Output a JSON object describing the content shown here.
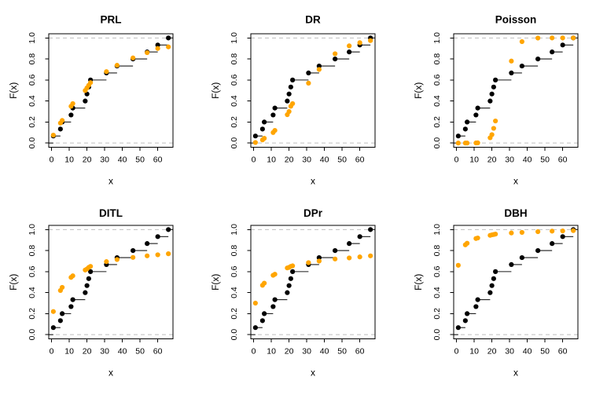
{
  "figure": {
    "background": "#FFFFFF",
    "description": "2x3 grid of empirical CDF step plots (black points) with fitted distribution CDF values (orange points)"
  },
  "chart_data": {
    "type": "scatter",
    "grid": "2 rows x 3 columns",
    "xlabel": "x",
    "ylabel": "F(x)",
    "xlim": [
      0,
      66
    ],
    "ylim": [
      0,
      1
    ],
    "x_ticks": [
      0,
      10,
      20,
      30,
      40,
      50,
      60
    ],
    "y_ticks": [
      0.0,
      0.2,
      0.4,
      0.6,
      0.8,
      1.0
    ],
    "y_tick_labels": [
      "0.0",
      "0.2",
      "0.4",
      "0.6",
      "0.8",
      "1.0"
    ],
    "reference_lines_y": [
      0,
      1
    ],
    "reference_line_style": "dashed",
    "colors": {
      "ecdf": "#000000",
      "fitted": "#FFA500",
      "ref_line": "#BFBFBF",
      "box": "#000000"
    },
    "markers": {
      "ecdf": "filled-circle-with-right-step-segment",
      "fitted": "filled-circle"
    },
    "x_values": [
      1,
      5,
      6,
      11,
      12,
      19,
      20,
      21,
      22,
      31,
      37,
      46,
      54,
      60,
      66
    ],
    "ecdf_values": [
      0.067,
      0.133,
      0.2,
      0.267,
      0.333,
      0.4,
      0.467,
      0.533,
      0.6,
      0.667,
      0.733,
      0.8,
      0.867,
      0.933,
      1.0
    ],
    "panels": [
      {
        "title": "PRL",
        "fitted_values": [
          0.075,
          0.19,
          0.215,
          0.35,
          0.375,
          0.5,
          0.525,
          0.55,
          0.575,
          0.68,
          0.74,
          0.81,
          0.86,
          0.9,
          0.915
        ]
      },
      {
        "title": "DR",
        "fitted_values": [
          0.005,
          0.03,
          0.045,
          0.1,
          0.12,
          0.27,
          0.3,
          0.35,
          0.375,
          0.57,
          0.7,
          0.85,
          0.925,
          0.955,
          0.975
        ]
      },
      {
        "title": "Poisson",
        "fitted_values": [
          0.0,
          0.0,
          0.0,
          0.001,
          0.002,
          0.05,
          0.08,
          0.14,
          0.21,
          0.78,
          0.965,
          0.999,
          1.0,
          1.0,
          1.0
        ]
      },
      {
        "title": "DITL",
        "fitted_values": [
          0.22,
          0.42,
          0.45,
          0.545,
          0.56,
          0.615,
          0.625,
          0.64,
          0.65,
          0.695,
          0.715,
          0.735,
          0.75,
          0.76,
          0.77
        ]
      },
      {
        "title": "DPr",
        "fitted_values": [
          0.3,
          0.47,
          0.49,
          0.565,
          0.575,
          0.635,
          0.64,
          0.65,
          0.655,
          0.685,
          0.7,
          0.72,
          0.73,
          0.74,
          0.75
        ]
      },
      {
        "title": "DBH",
        "fitted_values": [
          0.66,
          0.855,
          0.87,
          0.915,
          0.92,
          0.945,
          0.95,
          0.953,
          0.957,
          0.968,
          0.973,
          0.98,
          0.985,
          0.987,
          0.99
        ]
      }
    ]
  }
}
